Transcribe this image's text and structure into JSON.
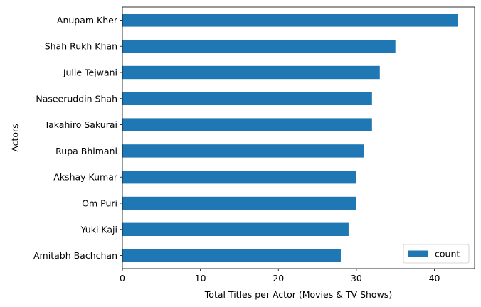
{
  "chart_data": {
    "type": "bar",
    "orientation": "horizontal",
    "categories": [
      "Anupam Kher",
      "Shah Rukh Khan",
      "Julie Tejwani",
      "Naseeruddin Shah",
      "Takahiro Sakurai",
      "Rupa Bhimani",
      "Akshay Kumar",
      "Om Puri",
      "Yuki Kaji",
      "Amitabh Bachchan"
    ],
    "series": [
      {
        "name": "count",
        "values": [
          43,
          35,
          33,
          32,
          32,
          31,
          30,
          30,
          29,
          28
        ],
        "color": "#1f77b4"
      }
    ],
    "xlabel": "Total Titles per Actor (Movies & TV Shows)",
    "ylabel": "Actors",
    "xlim": [
      0,
      45.15
    ],
    "xticks": [
      0,
      10,
      20,
      30,
      40
    ],
    "grid": false,
    "legend_position": "lower-right"
  }
}
